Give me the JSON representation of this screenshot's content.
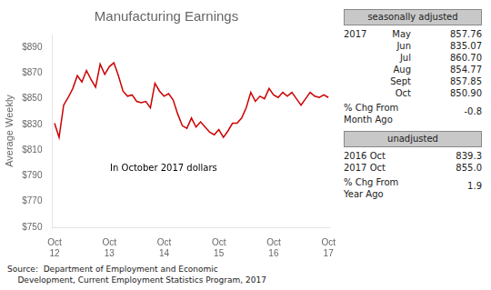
{
  "chart_data": {
    "type": "line",
    "title": "Manufacturing Earnings",
    "y_label": "Average Weekly",
    "annotations": [
      "In October 2017 dollars"
    ],
    "source": [
      "Source:  Department of Employment and Economic",
      "    Development, Current Employment Statistics Program, 2017"
    ],
    "color": "#cc0000",
    "grid": false,
    "ylim": [
      750,
      900
    ],
    "yticks": [
      {
        "value": 750,
        "label": "$750"
      },
      {
        "value": 770,
        "label": "$770"
      },
      {
        "value": 790,
        "label": "$790"
      },
      {
        "value": 810,
        "label": "$810"
      },
      {
        "value": 830,
        "label": "$830"
      },
      {
        "value": 850,
        "label": "$850"
      },
      {
        "value": 870,
        "label": "$870"
      },
      {
        "value": 890,
        "label": "$890"
      }
    ],
    "categories": [
      "Oct\n12",
      null,
      null,
      null,
      null,
      null,
      null,
      null,
      null,
      null,
      null,
      null,
      "Oct\n13",
      null,
      null,
      null,
      null,
      null,
      null,
      null,
      null,
      null,
      null,
      null,
      "Oct\n14",
      null,
      null,
      null,
      null,
      null,
      null,
      null,
      null,
      null,
      null,
      null,
      "Oct\n15",
      null,
      null,
      null,
      null,
      null,
      null,
      null,
      null,
      null,
      null,
      null,
      "Oct\n16",
      null,
      null,
      null,
      null,
      null,
      null,
      null,
      null,
      null,
      null,
      null,
      "Oct\n17"
    ],
    "values": [
      831,
      820,
      845,
      851,
      858,
      868,
      863,
      872,
      865,
      859,
      877,
      869,
      875,
      878,
      868,
      856,
      852,
      853,
      848,
      847,
      848,
      843,
      862,
      856,
      852,
      854,
      849,
      838,
      829,
      827,
      835,
      828,
      832,
      828,
      824,
      822,
      826,
      820,
      825,
      831,
      831,
      835,
      843,
      855,
      848,
      852,
      850,
      858,
      853,
      851,
      855,
      852,
      855,
      850,
      845,
      850,
      855,
      852,
      851,
      853,
      851
    ],
    "side_panel": {
      "seasonally_adjusted": {
        "label": "seasonally adjusted",
        "year": "2017",
        "rows": [
          [
            "May",
            "857.76"
          ],
          [
            "Jun",
            "835.07"
          ],
          [
            "Jul",
            "860.70"
          ],
          [
            "Aug",
            "854.77"
          ],
          [
            "Sept",
            "857.85"
          ],
          [
            "Oct",
            "850.90"
          ]
        ],
        "change_label": "% Chg From\nMonth Ago",
        "change": "-0.8"
      },
      "unadjusted": {
        "label": "unadjusted",
        "rows": [
          [
            "2016 Oct",
            "839.3"
          ],
          [
            "2017 Oct",
            "855.0"
          ]
        ],
        "change_label": "% Chg From\nYear Ago",
        "change": "1.9"
      }
    }
  }
}
